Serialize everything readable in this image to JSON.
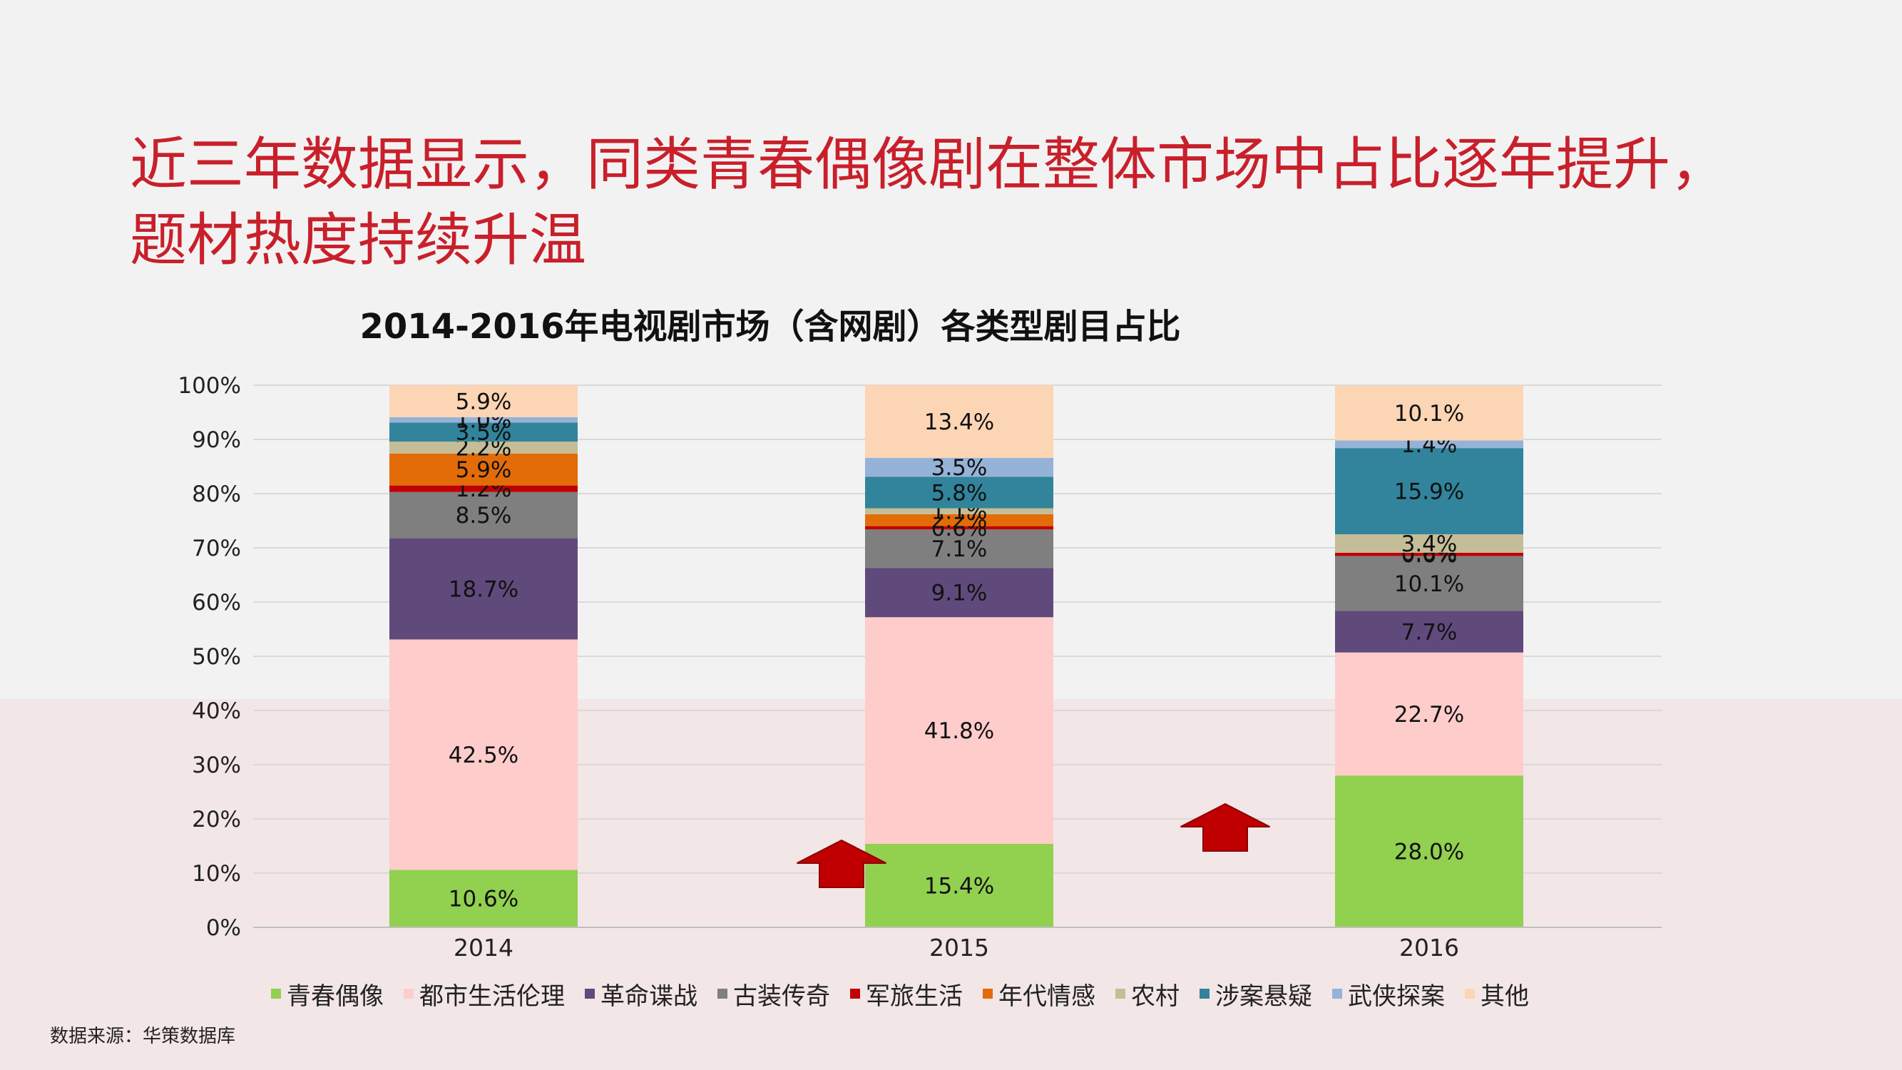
{
  "headline": "近三年数据显示，同类青春偶像剧在整体市场中占比逐年提升，题材热度持续升温",
  "source": "数据来源：华策数据库",
  "chart_data": {
    "type": "bar",
    "stacked": true,
    "title": "2014-2016年电视剧市场（含网剧）各类型剧目占比",
    "categories": [
      "2014",
      "2015",
      "2016"
    ],
    "ylim": [
      0,
      100
    ],
    "y_ticks": [
      "0%",
      "10%",
      "20%",
      "30%",
      "40%",
      "50%",
      "60%",
      "70%",
      "80%",
      "90%",
      "100%"
    ],
    "grid": true,
    "legend_position": "bottom",
    "series": [
      {
        "name": "青春偶像",
        "color": "#92d050",
        "values": [
          10.6,
          15.4,
          28.0
        ],
        "labels": [
          "10.6%",
          "15.4%",
          "28.0%"
        ]
      },
      {
        "name": "都市生活伦理",
        "color": "#ffcccc",
        "values": [
          42.5,
          41.8,
          22.7
        ],
        "labels": [
          "42.5%",
          "41.8%",
          "22.7%"
        ]
      },
      {
        "name": "革命谍战",
        "color": "#604a7b",
        "values": [
          18.7,
          9.1,
          7.7
        ],
        "labels": [
          "18.7%",
          "9.1%",
          "7.7%"
        ]
      },
      {
        "name": "古装传奇",
        "color": "#7f7f7f",
        "values": [
          8.5,
          7.1,
          10.1
        ],
        "labels": [
          "8.5%",
          "7.1%",
          "10.1%"
        ]
      },
      {
        "name": "军旅生活",
        "color": "#c00000",
        "values": [
          1.2,
          0.6,
          0.6
        ],
        "labels": [
          "1.2%",
          "0.6%",
          "0.6%"
        ]
      },
      {
        "name": "年代情感",
        "color": "#e36c09",
        "values": [
          5.9,
          2.2,
          0.0
        ],
        "labels": [
          "5.9%",
          "2.2%",
          "0.0%"
        ]
      },
      {
        "name": "农村",
        "color": "#c4bd97",
        "values": [
          2.2,
          1.1,
          3.4
        ],
        "labels": [
          "2.2%",
          "1.1%",
          "3.4%"
        ]
      },
      {
        "name": "涉案悬疑",
        "color": "#31849b",
        "values": [
          3.5,
          5.8,
          15.9
        ],
        "labels": [
          "3.5%",
          "5.8%",
          "15.9%"
        ]
      },
      {
        "name": "武侠探案",
        "color": "#95b3d7",
        "values": [
          1.0,
          3.5,
          1.4
        ],
        "labels": [
          "1.0%",
          "3.5%",
          "1.4%"
        ]
      },
      {
        "name": "其他",
        "color": "#fcd5b4",
        "values": [
          5.9,
          13.4,
          10.1
        ],
        "labels": [
          "5.9%",
          "13.4%",
          "10.1%"
        ]
      }
    ],
    "annotations": [
      "up-arrow-2015",
      "up-arrow-2016"
    ]
  }
}
